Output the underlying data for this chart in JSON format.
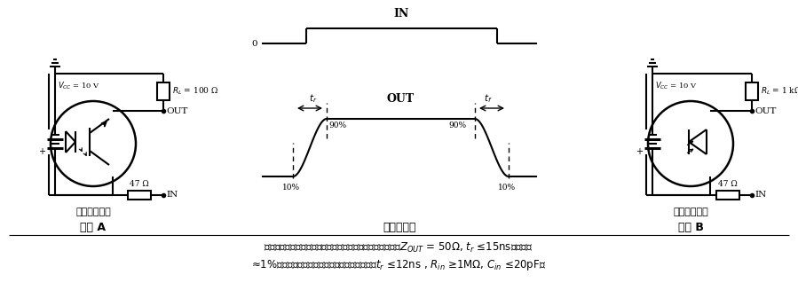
{
  "bg_color": "#ffffff",
  "label_circuit_a": "电路 A",
  "label_waveform": "电压波形图",
  "label_circuit_b": "电路 B",
  "label_transistor": "光晶体管工作",
  "label_diode": "光二极管工作"
}
